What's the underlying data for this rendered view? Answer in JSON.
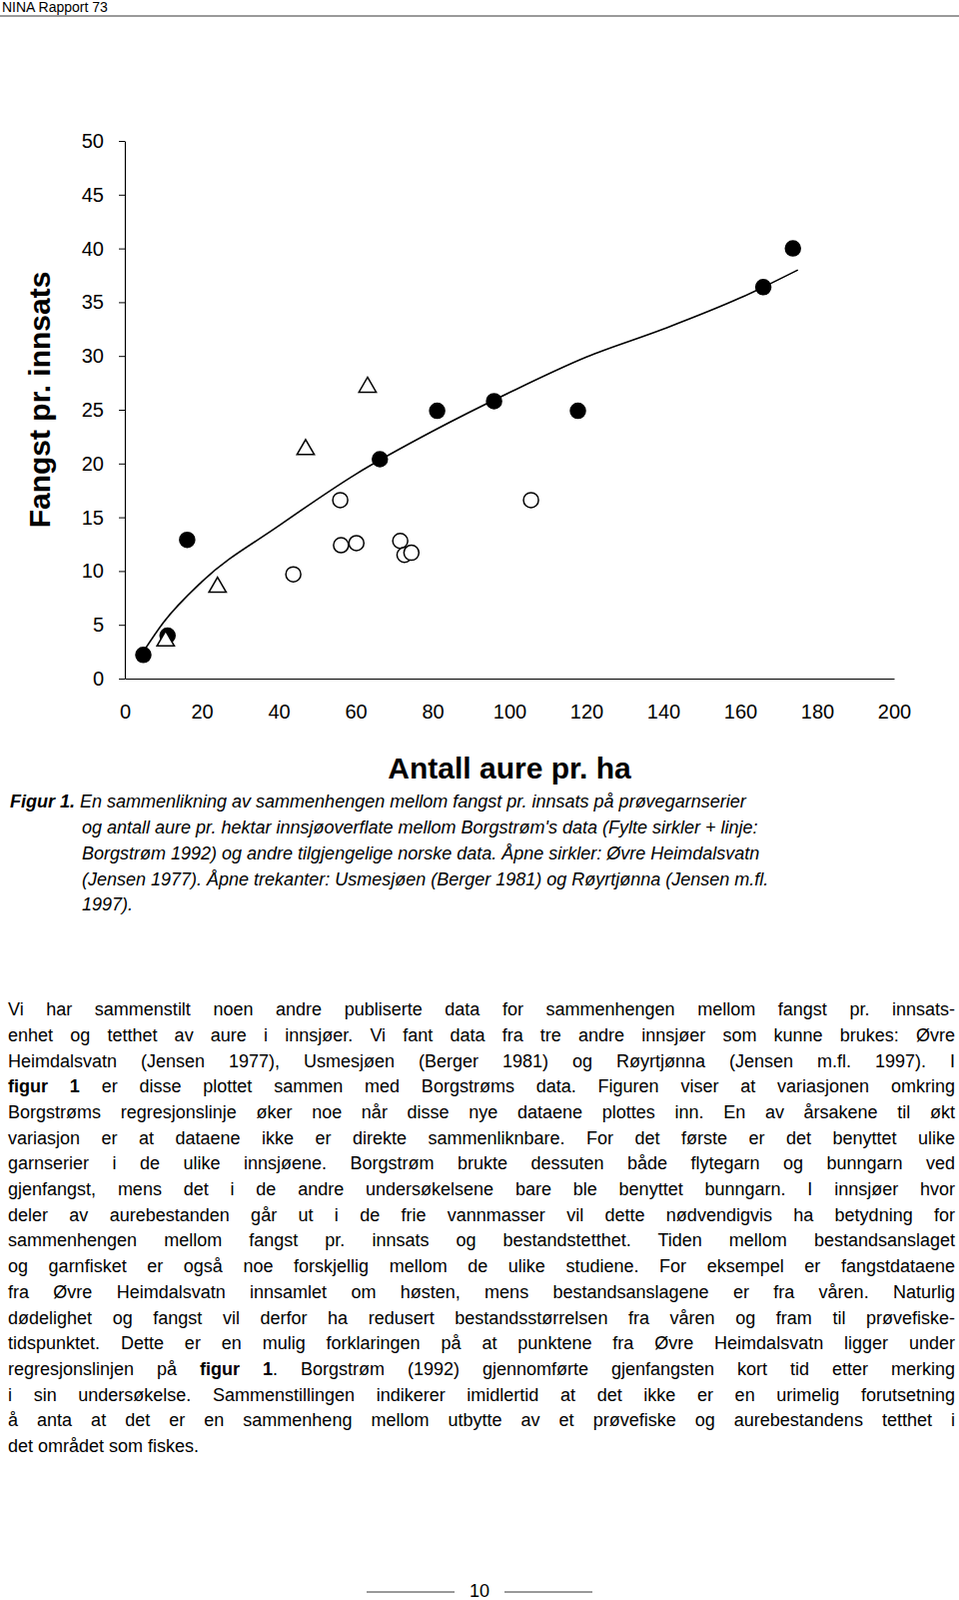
{
  "header": {
    "title": "NINA Rapport 73"
  },
  "chart_data": {
    "type": "scatter",
    "x_label": "Antall aure pr. ha",
    "y_label": "Fangst pr. innsats",
    "xlim": [
      0,
      200
    ],
    "xticks": [
      0,
      20,
      40,
      60,
      80,
      100,
      120,
      140,
      160,
      180,
      200
    ],
    "ylim": [
      0,
      50
    ],
    "yticks": [
      0,
      5,
      10,
      15,
      20,
      25,
      30,
      35,
      40,
      45,
      50
    ],
    "series": [
      {
        "type": "line",
        "line_style": "solid",
        "color": "#000000",
        "x": [
          4.8,
          10,
          20,
          40,
          60,
          80,
          100,
          120,
          140,
          160,
          175
        ],
        "values": [
          2.5,
          5.2,
          9.0,
          14.2,
          19.0,
          23.0,
          26.6,
          29.9,
          32.5,
          35.4,
          38.0
        ]
      },
      {
        "type": "scatter",
        "marker": "circle",
        "color": "#000000",
        "x": [
          4.8,
          11.1,
          16.2,
          66.3,
          81.2,
          96.0,
          117.8,
          166.0,
          173.7
        ],
        "values": [
          2.2,
          4.0,
          12.9,
          20.4,
          24.9,
          25.8,
          24.9,
          36.4,
          40.0
        ]
      },
      {
        "type": "scatter",
        "marker": "circle-open",
        "color": "#000000",
        "x": [
          43.8,
          56.0,
          56.2,
          60.2,
          71.6,
          72.7,
          74.5,
          105.6
        ],
        "values": [
          9.7,
          16.6,
          12.4,
          12.6,
          12.8,
          11.5,
          11.7,
          16.6
        ]
      },
      {
        "type": "scatter",
        "marker": "triangle-open",
        "color": "#000000",
        "x": [
          10.6,
          24.1,
          47.0,
          63.1
        ],
        "values": [
          3.5,
          8.5,
          21.3,
          27.1
        ]
      }
    ]
  },
  "caption": {
    "label": "Figur 1.",
    "lines": [
      " En sammenlikning av sammenhengen mellom fangst pr. innsats på prøvegarnserier",
      "og antall aure pr. hektar innsjøoverflate mellom Borgstrøm's data (Fylte sirkler + linje:",
      "Borgstrøm 1992) og andre tilgjengelige norske data. Åpne sirkler: Øvre Heimdalsvatn",
      "(Jensen 1977). Åpne trekanter: Usmesjøen (Berger 1981) og Røyrtjønna (Jensen m.fl.",
      "1997)."
    ]
  },
  "body": {
    "lines": [
      [
        "Vi har sammenstilt noen andre publiserte data for sammenhengen mellom fangst pr. innsats-"
      ],
      [
        "enhet og tetthet av aure i innsjøer. Vi fant data fra tre andre innsjøer som kunne brukes: Øvre"
      ],
      [
        "Heimdalsvatn (Jensen 1977), Usmesjøen (Berger 1981) og Røyrtjønna (Jensen m.fl. 1997). I"
      ],
      [
        {
          "text": "figur 1",
          "bold": true
        },
        " er disse plottet sammen med Borgstrøms data. Figuren viser at variasjonen omkring"
      ],
      [
        "Borgstrøms regresjonslinje øker noe når disse nye dataene plottes inn. En av årsakene til økt"
      ],
      [
        "variasjon er at dataene ikke er direkte sammenliknbare. For det første er det benyttet ulike"
      ],
      [
        "garnserier i de ulike innsjøene. Borgstrøm brukte dessuten både flytegarn og bunngarn ved"
      ],
      [
        "gjenfangst, mens det i de andre undersøkelsene bare ble benyttet bunngarn. I innsjøer hvor"
      ],
      [
        "deler av aurebestanden går ut i de frie vannmasser vil dette nødvendigvis ha betydning for"
      ],
      [
        "sammenhengen mellom fangst pr. innsats og bestandstetthet. Tiden mellom bestandsanslaget"
      ],
      [
        "og garnfisket er også noe forskjellig mellom de ulike studiene. For eksempel er fangstdataene"
      ],
      [
        "fra Øvre Heimdalsvatn innsamlet om høsten, mens bestandsanslagene er fra våren. Naturlig"
      ],
      [
        "dødelighet og fangst vil derfor ha redusert bestandsstørrelsen fra våren og fram til prøvefiske-"
      ],
      [
        "tidspunktet. Dette er en mulig forklaringen på at punktene fra Øvre Heimdalsvatn ligger under"
      ],
      [
        "regresjonslinjen på ",
        {
          "text": "figur 1",
          "bold": true
        },
        ". Borgstrøm (1992) gjennomførte gjenfangsten kort tid etter merking"
      ],
      [
        "i sin undersøkelse. Sammenstillingen indikerer imidlertid at det ikke er en urimelig forutsetning"
      ],
      [
        "å anta at det er en sammenheng mellom utbytte av et prøvefiske og aurebestandens tetthet i"
      ],
      [
        "det området som fiskes."
      ]
    ]
  },
  "page_number": "10"
}
